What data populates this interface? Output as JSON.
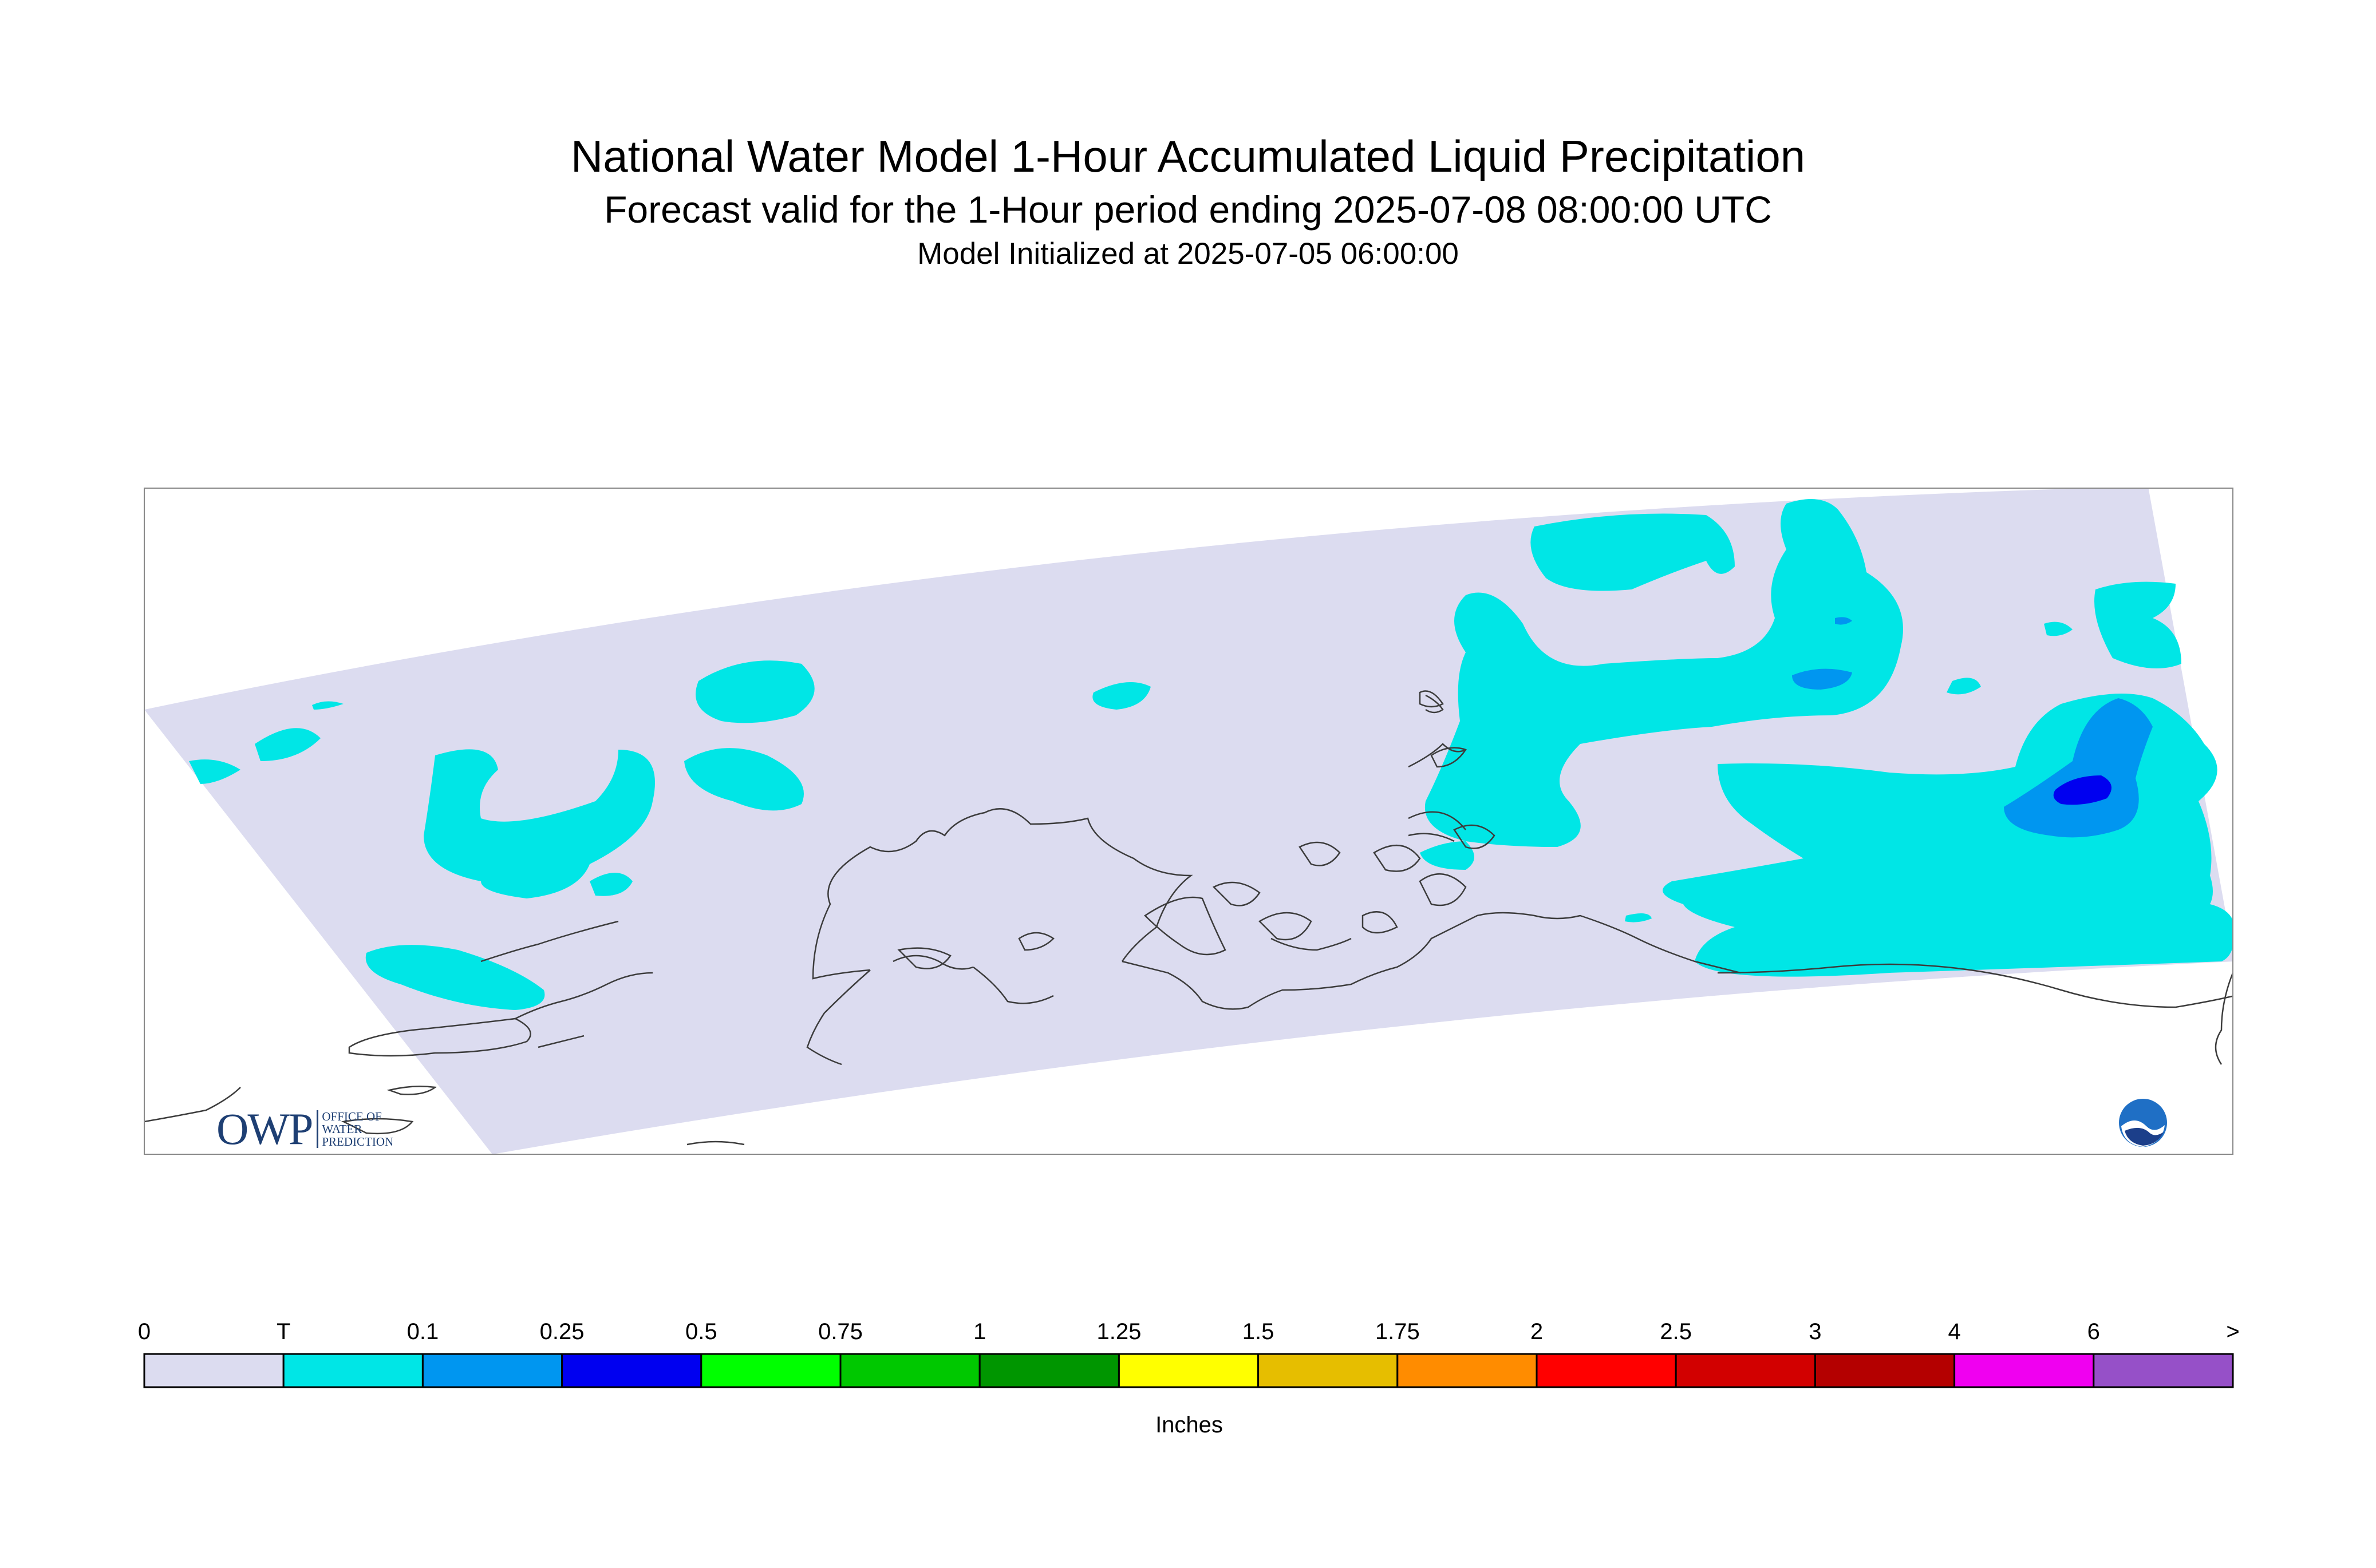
{
  "header": {
    "title": "National Water Model 1-Hour Accumulated Liquid Precipitation",
    "subtitle": "Forecast valid for the 1-Hour period ending 2025-07-08 08:00:00 UTC",
    "init": "Model Initialized at 2025-07-05 06:00:00"
  },
  "legend": {
    "labels": [
      "0",
      "T",
      "0.1",
      "0.25",
      "0.5",
      "0.75",
      "1",
      "1.25",
      "1.5",
      "1.75",
      "2",
      "2.5",
      "3",
      "4",
      "6",
      ">"
    ],
    "colors": [
      "#dcdcf0",
      "#00e6e6",
      "#0096f0",
      "#0000f0",
      "#00ff00",
      "#00c800",
      "#009600",
      "#ffff00",
      "#e6be00",
      "#ff8c00",
      "#ff0000",
      "#d20000",
      "#b40000",
      "#f000f0",
      "#9650c8"
    ],
    "units": "Inches"
  },
  "map": {
    "background_color": "#dcdcf0",
    "coastline_color": "#3c3c3c",
    "max_precip_category": "0.25"
  },
  "logos": {
    "owp_big": "OWP",
    "owp_small": [
      "OFFICE OF",
      "WATER",
      "PREDICTION"
    ]
  }
}
